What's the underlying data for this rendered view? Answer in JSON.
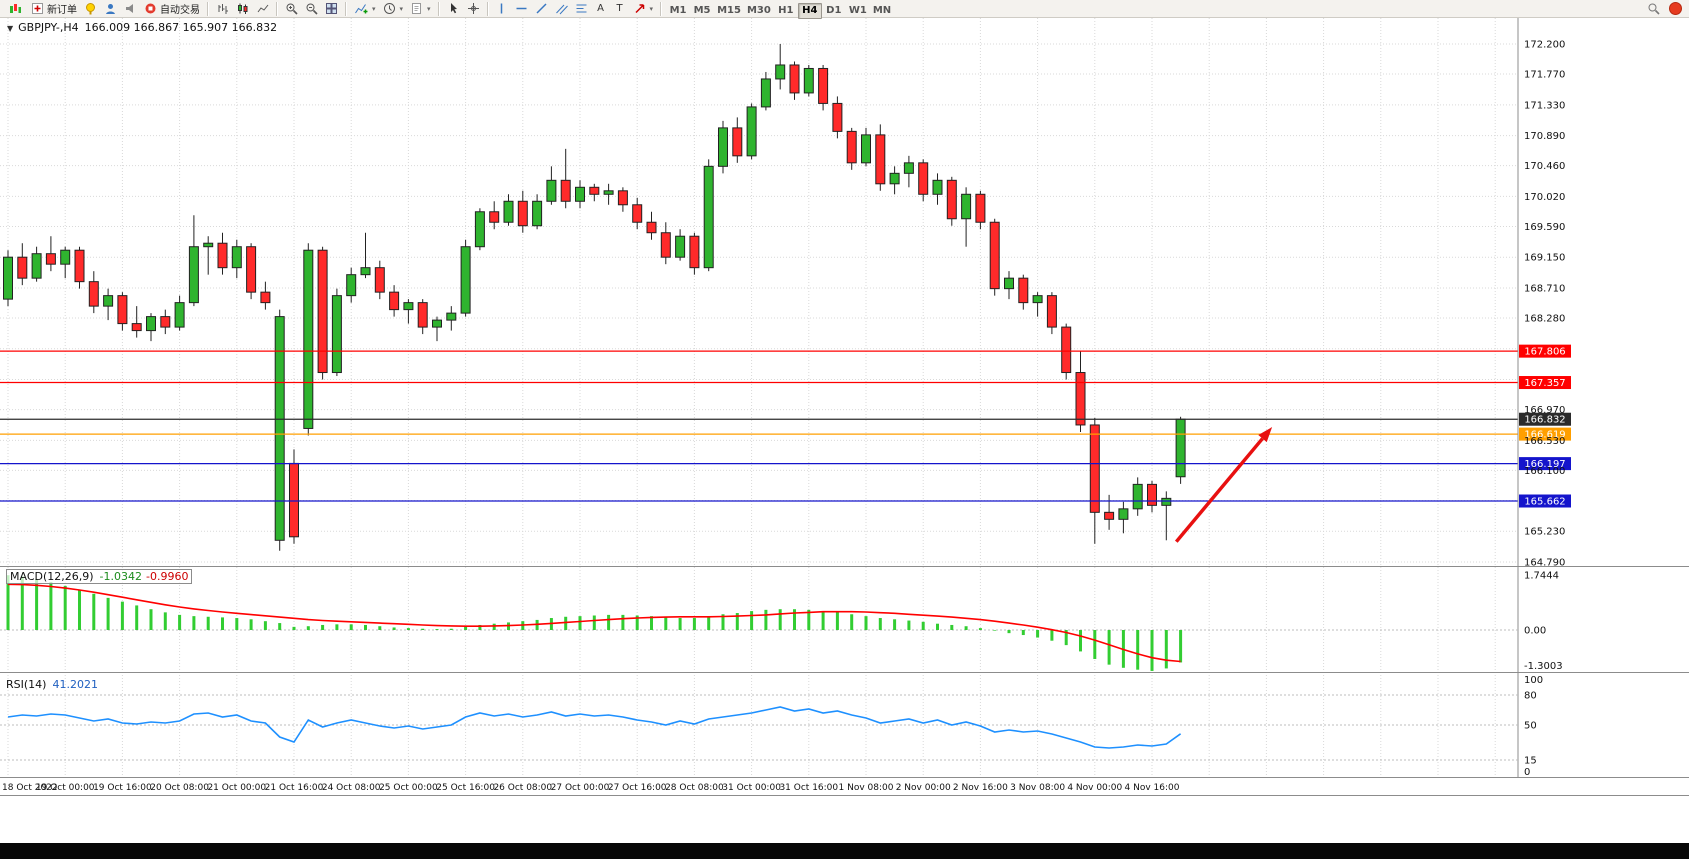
{
  "toolbar": {
    "new_order_label": "新订单",
    "autotrading_label": "自动交易",
    "text_tool_label": "A",
    "label_tool_label": "T",
    "timeframes": [
      "M1",
      "M5",
      "M15",
      "M30",
      "H1",
      "H4",
      "D1",
      "W1",
      "MN"
    ],
    "active_timeframe": "H4"
  },
  "chart_header": {
    "collapse_icon": "▼",
    "symbol": "GBPJPY-,H4",
    "ohlc": "166.009 166.867 165.907 166.832"
  },
  "indicators": {
    "macd": {
      "label": "MACD(12,26,9)",
      "main_value": "-1.0342",
      "signal_value": "-0.9960",
      "axis_labels": [
        "1.7444",
        "0.00",
        "-1.3003"
      ]
    },
    "rsi": {
      "label": "RSI(14)",
      "value": "41.2021",
      "axis_labels": [
        "100",
        "80",
        "50",
        "15",
        "0"
      ],
      "levels": [
        80,
        50,
        15
      ]
    }
  },
  "chart_data": {
    "type": "candlestick",
    "symbol": "GBPJPY",
    "timeframe": "H4",
    "ohlc_display": {
      "open": "166.009",
      "high": "166.867",
      "low": "165.907",
      "close": "166.832"
    },
    "price_axis_ticks": [
      "172.200",
      "171.770",
      "171.330",
      "170.890",
      "170.460",
      "170.020",
      "169.590",
      "169.150",
      "168.710",
      "168.280",
      "167.840",
      "167.400",
      "166.970",
      "166.530",
      "166.100",
      "165.670",
      "165.230",
      "164.790"
    ],
    "time_labels": [
      "18 Oct 2022",
      "19 Oct 00:00",
      "19 Oct 16:00",
      "20 Oct 08:00",
      "21 Oct 00:00",
      "21 Oct 16:00",
      "24 Oct 08:00",
      "25 Oct 00:00",
      "25 Oct 16:00",
      "26 Oct 08:00",
      "27 Oct 00:00",
      "27 Oct 16:00",
      "28 Oct 08:00",
      "31 Oct 00:00",
      "31 Oct 16:00",
      "1 Nov 08:00",
      "2 Nov 00:00",
      "2 Nov 16:00",
      "3 Nov 08:00",
      "4 Nov 00:00",
      "4 Nov 16:00"
    ],
    "candles": [
      [
        168.55,
        169.25,
        168.45,
        169.15
      ],
      [
        169.15,
        169.35,
        168.75,
        168.85
      ],
      [
        168.85,
        169.3,
        168.8,
        169.2
      ],
      [
        169.2,
        169.45,
        168.95,
        169.05
      ],
      [
        169.05,
        169.3,
        168.85,
        169.25
      ],
      [
        169.25,
        169.3,
        168.7,
        168.8
      ],
      [
        168.8,
        168.95,
        168.35,
        168.45
      ],
      [
        168.45,
        168.7,
        168.25,
        168.6
      ],
      [
        168.6,
        168.65,
        168.1,
        168.2
      ],
      [
        168.2,
        168.45,
        168.0,
        168.1
      ],
      [
        168.1,
        168.35,
        167.95,
        168.3
      ],
      [
        168.3,
        168.4,
        168.05,
        168.15
      ],
      [
        168.15,
        168.6,
        168.1,
        168.5
      ],
      [
        168.5,
        169.75,
        168.45,
        169.3
      ],
      [
        169.3,
        169.45,
        168.9,
        169.35
      ],
      [
        169.35,
        169.5,
        168.9,
        169.0
      ],
      [
        169.0,
        169.4,
        168.85,
        169.3
      ],
      [
        169.3,
        169.35,
        168.55,
        168.65
      ],
      [
        168.65,
        168.8,
        168.4,
        168.5
      ],
      [
        165.1,
        168.4,
        164.95,
        168.3
      ],
      [
        166.2,
        166.4,
        165.05,
        165.15
      ],
      [
        166.7,
        169.35,
        166.6,
        169.25
      ],
      [
        169.25,
        169.3,
        167.4,
        167.5
      ],
      [
        167.5,
        168.7,
        167.45,
        168.6
      ],
      [
        168.6,
        169.0,
        168.5,
        168.9
      ],
      [
        168.9,
        169.5,
        168.85,
        169.0
      ],
      [
        169.0,
        169.1,
        168.55,
        168.65
      ],
      [
        168.65,
        168.75,
        168.3,
        168.4
      ],
      [
        168.4,
        168.55,
        168.2,
        168.5
      ],
      [
        168.5,
        168.55,
        168.05,
        168.15
      ],
      [
        168.15,
        168.3,
        167.95,
        168.25
      ],
      [
        168.25,
        168.45,
        168.1,
        168.35
      ],
      [
        168.35,
        169.4,
        168.3,
        169.3
      ],
      [
        169.3,
        169.85,
        169.25,
        169.8
      ],
      [
        169.8,
        169.95,
        169.55,
        169.65
      ],
      [
        169.65,
        170.05,
        169.6,
        169.95
      ],
      [
        169.95,
        170.1,
        169.5,
        169.6
      ],
      [
        169.6,
        170.05,
        169.55,
        169.95
      ],
      [
        169.95,
        170.45,
        169.9,
        170.25
      ],
      [
        170.25,
        170.7,
        169.85,
        169.95
      ],
      [
        169.95,
        170.25,
        169.85,
        170.15
      ],
      [
        170.15,
        170.2,
        169.95,
        170.05
      ],
      [
        170.05,
        170.2,
        169.9,
        170.1
      ],
      [
        170.1,
        170.15,
        169.8,
        169.9
      ],
      [
        169.9,
        170.0,
        169.55,
        169.65
      ],
      [
        169.65,
        169.8,
        169.4,
        169.5
      ],
      [
        169.5,
        169.65,
        169.05,
        169.15
      ],
      [
        169.15,
        169.55,
        169.1,
        169.45
      ],
      [
        169.45,
        169.5,
        168.9,
        169.0
      ],
      [
        169.0,
        170.55,
        168.95,
        170.45
      ],
      [
        170.45,
        171.1,
        170.35,
        171.0
      ],
      [
        171.0,
        171.15,
        170.5,
        170.6
      ],
      [
        170.6,
        171.35,
        170.55,
        171.3
      ],
      [
        171.3,
        171.8,
        171.25,
        171.7
      ],
      [
        171.7,
        172.2,
        171.55,
        171.9
      ],
      [
        171.9,
        171.95,
        171.4,
        171.5
      ],
      [
        171.5,
        171.9,
        171.45,
        171.85
      ],
      [
        171.85,
        171.9,
        171.25,
        171.35
      ],
      [
        171.35,
        171.45,
        170.85,
        170.95
      ],
      [
        170.95,
        171.0,
        170.4,
        170.5
      ],
      [
        170.5,
        171.0,
        170.45,
        170.9
      ],
      [
        170.9,
        171.05,
        170.1,
        170.2
      ],
      [
        170.2,
        170.45,
        170.05,
        170.35
      ],
      [
        170.35,
        170.6,
        170.15,
        170.5
      ],
      [
        170.5,
        170.55,
        169.95,
        170.05
      ],
      [
        170.05,
        170.35,
        169.9,
        170.25
      ],
      [
        170.25,
        170.3,
        169.6,
        169.7
      ],
      [
        169.7,
        170.15,
        169.3,
        170.05
      ],
      [
        170.05,
        170.1,
        169.55,
        169.65
      ],
      [
        169.65,
        169.7,
        168.6,
        168.7
      ],
      [
        168.7,
        168.95,
        168.55,
        168.85
      ],
      [
        168.85,
        168.9,
        168.4,
        168.5
      ],
      [
        168.5,
        168.65,
        168.3,
        168.6
      ],
      [
        168.6,
        168.65,
        168.05,
        168.15
      ],
      [
        168.15,
        168.2,
        167.4,
        167.5
      ],
      [
        167.5,
        167.8,
        166.65,
        166.75
      ],
      [
        166.75,
        166.85,
        165.05,
        165.5
      ],
      [
        165.5,
        165.75,
        165.25,
        165.4
      ],
      [
        165.4,
        165.65,
        165.2,
        165.55
      ],
      [
        165.55,
        166.0,
        165.45,
        165.9
      ],
      [
        165.9,
        165.95,
        165.5,
        165.6
      ],
      [
        165.6,
        165.8,
        165.1,
        165.7
      ],
      [
        166.009,
        166.867,
        165.907,
        166.832
      ]
    ],
    "horizontal_lines": [
      {
        "price": 167.806,
        "label": "167.806",
        "color": "#ff0000"
      },
      {
        "price": 167.357,
        "label": "167.357",
        "color": "#ff0000"
      },
      {
        "price": 166.832,
        "label": "166.832",
        "color": "#2b2b2b"
      },
      {
        "price": 166.619,
        "label": "166.619",
        "color": "#ff9f00"
      },
      {
        "price": 166.197,
        "label": "166.197",
        "color": "#1414cc"
      },
      {
        "price": 165.662,
        "label": "165.662",
        "color": "#1414cc"
      }
    ],
    "arrow": {
      "from_bar": 81.7,
      "from_price": 165.08,
      "to_bar": 88.4,
      "to_price": 166.72,
      "color": "#e81010"
    },
    "macd": {
      "histogram": [
        1.74,
        1.7,
        1.62,
        1.52,
        1.4,
        1.28,
        1.15,
        1.02,
        0.9,
        0.78,
        0.66,
        0.56,
        0.48,
        0.44,
        0.42,
        0.4,
        0.38,
        0.34,
        0.28,
        0.22,
        0.1,
        0.12,
        0.16,
        0.18,
        0.18,
        0.16,
        0.12,
        0.08,
        0.06,
        0.04,
        0.03,
        0.04,
        0.1,
        0.16,
        0.2,
        0.24,
        0.28,
        0.32,
        0.38,
        0.42,
        0.44,
        0.46,
        0.48,
        0.48,
        0.46,
        0.44,
        0.4,
        0.38,
        0.38,
        0.44,
        0.5,
        0.54,
        0.6,
        0.64,
        0.66,
        0.66,
        0.64,
        0.6,
        0.56,
        0.5,
        0.44,
        0.38,
        0.34,
        0.3,
        0.26,
        0.2,
        0.16,
        0.12,
        0.06,
        -0.02,
        -0.1,
        -0.16,
        -0.24,
        -0.34,
        -0.48,
        -0.68,
        -0.92,
        -1.1,
        -1.2,
        -1.26,
        -1.3,
        -1.22,
        -1.03
      ],
      "signal": [
        1.45,
        1.44,
        1.42,
        1.38,
        1.33,
        1.27,
        1.2,
        1.12,
        1.04,
        0.96,
        0.88,
        0.8,
        0.73,
        0.67,
        0.62,
        0.57,
        0.53,
        0.49,
        0.45,
        0.41,
        0.37,
        0.33,
        0.3,
        0.28,
        0.26,
        0.24,
        0.22,
        0.2,
        0.18,
        0.16,
        0.14,
        0.13,
        0.12,
        0.12,
        0.13,
        0.14,
        0.16,
        0.18,
        0.21,
        0.24,
        0.27,
        0.3,
        0.33,
        0.36,
        0.38,
        0.4,
        0.41,
        0.42,
        0.42,
        0.42,
        0.43,
        0.44,
        0.46,
        0.48,
        0.51,
        0.54,
        0.56,
        0.58,
        0.58,
        0.58,
        0.57,
        0.55,
        0.53,
        0.5,
        0.47,
        0.44,
        0.41,
        0.37,
        0.33,
        0.28,
        0.22,
        0.16,
        0.09,
        0.01,
        -0.08,
        -0.19,
        -0.32,
        -0.47,
        -0.62,
        -0.76,
        -0.88,
        -0.96,
        -1.0
      ],
      "axis": {
        "max": 1.7444,
        "zero": 0,
        "min": -1.3003
      }
    },
    "rsi": {
      "values": [
        58,
        60,
        59,
        61,
        60,
        57,
        54,
        56,
        52,
        51,
        53,
        52,
        54,
        61,
        62,
        58,
        60,
        54,
        52,
        38,
        33,
        55,
        48,
        52,
        55,
        52,
        49,
        47,
        49,
        46,
        48,
        50,
        58,
        62,
        59,
        61,
        58,
        60,
        63,
        59,
        61,
        59,
        60,
        58,
        55,
        53,
        50,
        54,
        51,
        56,
        58,
        60,
        62,
        65,
        68,
        64,
        66,
        62,
        64,
        60,
        57,
        52,
        54,
        56,
        52,
        55,
        50,
        53,
        49,
        43,
        45,
        43,
        44,
        41,
        37,
        33,
        28,
        27,
        28,
        30,
        29,
        31,
        41.2
      ],
      "levels": [
        80,
        50,
        15
      ],
      "range": [
        0,
        100
      ]
    },
    "colors": {
      "up": "#2fb42f",
      "down": "#ff2a2a",
      "wick": "#222222",
      "macd_histogram": "#32cd32",
      "macd_signal": "#ff0000",
      "rsi_line": "#1e90ff",
      "grid": "#d9d9d9",
      "background": "#ffffff",
      "axis_text": "#111111",
      "separator": "#8c8c8c"
    }
  }
}
